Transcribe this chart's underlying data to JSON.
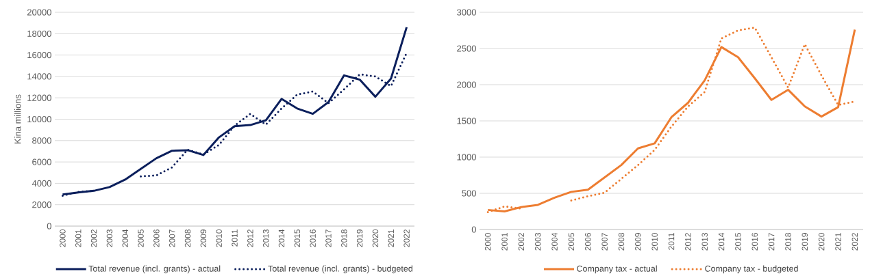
{
  "chart_data": [
    {
      "type": "line",
      "ylabel": "Kina millions",
      "categories": [
        "2000",
        "2001",
        "2002",
        "2003",
        "2004",
        "2005",
        "2006",
        "2007",
        "2008",
        "2009",
        "2010",
        "2011",
        "2012",
        "2013",
        "2014",
        "2015",
        "2016",
        "2017",
        "2018",
        "2019",
        "2020",
        "2021",
        "2022"
      ],
      "ylim": [
        0,
        20000
      ],
      "yticks": [
        0,
        2000,
        4000,
        6000,
        8000,
        10000,
        12000,
        14000,
        16000,
        18000,
        20000
      ],
      "grid": "y",
      "legend": "bottom",
      "marker": "none",
      "series": [
        {
          "name": "Total revenue (incl. grants) - actual",
          "color": "#0b1f5c",
          "line_style": "solid",
          "values": [
            2950,
            3150,
            3300,
            3650,
            4350,
            5350,
            6350,
            7050,
            7100,
            6650,
            8300,
            9350,
            9450,
            9900,
            11900,
            11000,
            10500,
            11600,
            14100,
            13700,
            12100,
            13800,
            18600
          ]
        },
        {
          "name": "Total revenue (incl. grants) - budgeted",
          "color": "#0b1f5c",
          "line_style": "dotted",
          "values": [
            2850,
            3200,
            3300,
            null,
            null,
            4650,
            4750,
            5500,
            7150,
            6700,
            7600,
            9400,
            10500,
            9500,
            11000,
            12300,
            12600,
            11500,
            12800,
            14200,
            14000,
            13100,
            16200
          ]
        }
      ]
    },
    {
      "type": "line",
      "categories": [
        "2000",
        "2001",
        "2002",
        "2003",
        "2004",
        "2005",
        "2006",
        "2007",
        "2008",
        "2009",
        "2010",
        "2011",
        "2012",
        "2013",
        "2014",
        "2015",
        "2016",
        "2017",
        "2018",
        "2019",
        "2020",
        "2021",
        "2022"
      ],
      "ylim": [
        0,
        3000
      ],
      "yticks": [
        0,
        500,
        1000,
        1500,
        2000,
        2500,
        3000
      ],
      "grid": "y",
      "legend": "bottom",
      "marker": "none",
      "series": [
        {
          "name": "Company tax - actual",
          "color": "#ed7d31",
          "line_style": "solid",
          "values": [
            270,
            250,
            310,
            340,
            440,
            520,
            550,
            720,
            890,
            1120,
            1190,
            1550,
            1750,
            2060,
            2520,
            2380,
            2090,
            1790,
            1930,
            1700,
            1560,
            1690,
            2760
          ]
        },
        {
          "name": "Company tax - budgeted",
          "color": "#ed7d31",
          "line_style": "dotted",
          "values": [
            240,
            320,
            290,
            null,
            null,
            400,
            460,
            510,
            700,
            890,
            1100,
            1420,
            1700,
            1900,
            2640,
            2750,
            2790,
            2380,
            1960,
            2560,
            2130,
            1720,
            1770
          ]
        }
      ]
    }
  ]
}
